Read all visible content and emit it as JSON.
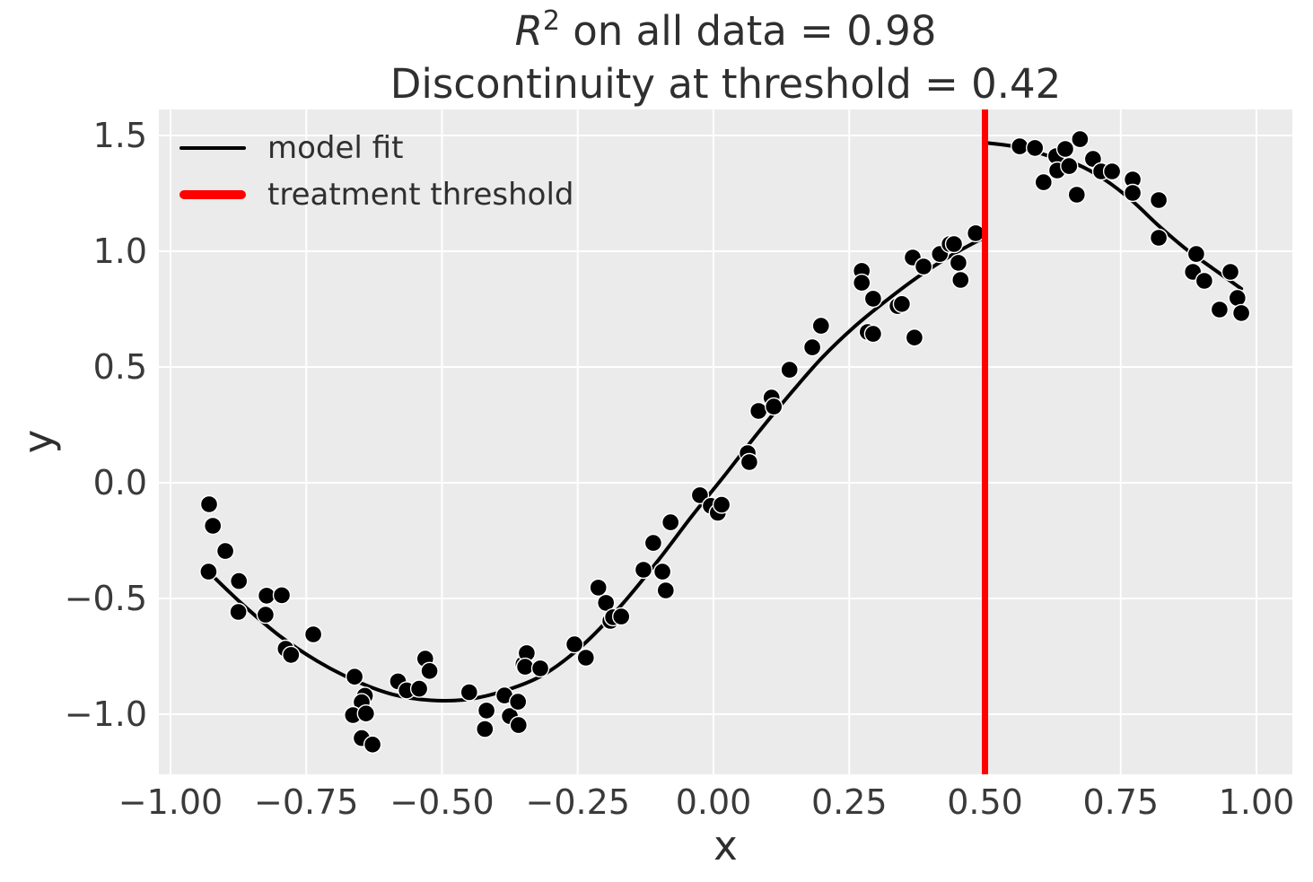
{
  "title": {
    "r_italic": "R",
    "r_exponent": "2",
    "line1_rest": " on all data = 0.98",
    "line2": "Discontinuity at threshold = 0.42",
    "r_squared_value": 0.98,
    "discontinuity_value": 0.42
  },
  "axes": {
    "xlabel": "x",
    "ylabel": "y"
  },
  "legend": {
    "position": "upper left",
    "items": [
      {
        "label": "model fit",
        "color": "#000000",
        "style": "line"
      },
      {
        "label": "treatment threshold",
        "color": "#ff0000",
        "style": "thick-line"
      }
    ]
  },
  "chart_data": {
    "type": "scatter",
    "title": "R^2 on all data = 0.98\nDiscontinuity at threshold = 0.42",
    "xlabel": "x",
    "ylabel": "y",
    "xlim": [
      -1.0215,
      1.0661
    ],
    "ylim": [
      -1.2597,
      1.6124
    ],
    "grid": true,
    "background_color": "#ebebeb",
    "grid_color": "#ffffff",
    "text_color": "#3a3a3a",
    "xticks": {
      "values": [
        -1.0,
        -0.75,
        -0.5,
        -0.25,
        0.0,
        0.25,
        0.5,
        0.75,
        1.0
      ],
      "labels": [
        "−1.00",
        "−0.75",
        "−0.50",
        "−0.25",
        "0.00",
        "0.25",
        "0.50",
        "0.75",
        "1.00"
      ]
    },
    "yticks": {
      "values": [
        1.5,
        1.0,
        0.5,
        0.0,
        -0.5,
        -1.0
      ],
      "labels": [
        "1.5",
        "1.0",
        "0.5",
        "0.0",
        "−0.5",
        "−1.0"
      ]
    },
    "threshold_line": {
      "x": 0.5,
      "color": "#ff0000",
      "width": 7
    },
    "fit_line": {
      "color": "#000000",
      "width": 4,
      "left_branch": [
        [
          -0.934,
          -0.376
        ],
        [
          -0.87,
          -0.52
        ],
        [
          -0.8,
          -0.66
        ],
        [
          -0.73,
          -0.77
        ],
        [
          -0.66,
          -0.855
        ],
        [
          -0.59,
          -0.915
        ],
        [
          -0.52,
          -0.94
        ],
        [
          -0.45,
          -0.935
        ],
        [
          -0.38,
          -0.895
        ],
        [
          -0.31,
          -0.825
        ],
        [
          -0.24,
          -0.7
        ],
        [
          -0.17,
          -0.53
        ],
        [
          -0.1,
          -0.33
        ],
        [
          -0.04,
          -0.145
        ],
        [
          0.02,
          0.03
        ],
        [
          0.08,
          0.21
        ],
        [
          0.14,
          0.38
        ],
        [
          0.2,
          0.54
        ],
        [
          0.26,
          0.675
        ],
        [
          0.32,
          0.79
        ],
        [
          0.38,
          0.895
        ],
        [
          0.44,
          0.985
        ],
        [
          0.499,
          1.06
        ]
      ],
      "right_branch": [
        [
          0.503,
          1.468
        ],
        [
          0.56,
          1.45
        ],
        [
          0.62,
          1.41
        ],
        [
          0.67,
          1.375
        ],
        [
          0.72,
          1.31
        ],
        [
          0.77,
          1.22
        ],
        [
          0.82,
          1.11
        ],
        [
          0.87,
          1.01
        ],
        [
          0.92,
          0.925
        ],
        [
          0.972,
          0.838
        ]
      ]
    },
    "scatter": {
      "color": "#000000",
      "edge_color": "#ffffff",
      "radius": 9.5,
      "points": [
        [
          -0.929,
          -0.093
        ],
        [
          -0.922,
          -0.186
        ],
        [
          -0.899,
          -0.295
        ],
        [
          -0.93,
          -0.384
        ],
        [
          -0.874,
          -0.425
        ],
        [
          -0.875,
          -0.558
        ],
        [
          -0.823,
          -0.488
        ],
        [
          -0.795,
          -0.486
        ],
        [
          -0.825,
          -0.57
        ],
        [
          -0.737,
          -0.655
        ],
        [
          -0.788,
          -0.717
        ],
        [
          -0.778,
          -0.744
        ],
        [
          -0.661,
          -0.838
        ],
        [
          -0.642,
          -0.92
        ],
        [
          -0.648,
          -0.948
        ],
        [
          -0.664,
          -1.004
        ],
        [
          -0.64,
          -0.997
        ],
        [
          -0.581,
          -0.858
        ],
        [
          -0.565,
          -0.897
        ],
        [
          -0.542,
          -0.89
        ],
        [
          -0.531,
          -0.76
        ],
        [
          -0.523,
          -0.813
        ],
        [
          -0.648,
          -1.103
        ],
        [
          -0.628,
          -1.131
        ],
        [
          -0.45,
          -0.905
        ],
        [
          -0.418,
          -0.984
        ],
        [
          -0.421,
          -1.064
        ],
        [
          -0.385,
          -0.919
        ],
        [
          -0.375,
          -1.008
        ],
        [
          -0.36,
          -0.946
        ],
        [
          -0.359,
          -1.047
        ],
        [
          -0.35,
          -0.783
        ],
        [
          -0.344,
          -0.736
        ],
        [
          -0.347,
          -0.795
        ],
        [
          -0.319,
          -0.802
        ],
        [
          -0.256,
          -0.698
        ],
        [
          -0.235,
          -0.756
        ],
        [
          -0.212,
          -0.453
        ],
        [
          -0.198,
          -0.519
        ],
        [
          -0.19,
          -0.597
        ],
        [
          -0.185,
          -0.581
        ],
        [
          -0.17,
          -0.578
        ],
        [
          -0.129,
          -0.376
        ],
        [
          -0.111,
          -0.26
        ],
        [
          -0.094,
          -0.384
        ],
        [
          -0.088,
          -0.465
        ],
        [
          -0.079,
          -0.171
        ],
        [
          -0.025,
          -0.054
        ],
        [
          -0.005,
          -0.1
        ],
        [
          0.008,
          -0.13
        ],
        [
          0.015,
          -0.095
        ],
        [
          0.063,
          0.128
        ],
        [
          0.066,
          0.089
        ],
        [
          0.083,
          0.31
        ],
        [
          0.107,
          0.368
        ],
        [
          0.111,
          0.329
        ],
        [
          0.14,
          0.488
        ],
        [
          0.182,
          0.585
        ],
        [
          0.198,
          0.678
        ],
        [
          0.273,
          0.915
        ],
        [
          0.273,
          0.864
        ],
        [
          0.294,
          0.795
        ],
        [
          0.284,
          0.651
        ],
        [
          0.294,
          0.643
        ],
        [
          0.339,
          0.763
        ],
        [
          0.347,
          0.772
        ],
        [
          0.367,
          0.973
        ],
        [
          0.37,
          0.627
        ],
        [
          0.387,
          0.934
        ],
        [
          0.417,
          0.988
        ],
        [
          0.435,
          1.031
        ],
        [
          0.443,
          1.031
        ],
        [
          0.451,
          0.95
        ],
        [
          0.455,
          0.876
        ],
        [
          0.483,
          1.078
        ],
        [
          0.564,
          1.453
        ],
        [
          0.592,
          1.446
        ],
        [
          0.608,
          1.298
        ],
        [
          0.631,
          1.411
        ],
        [
          0.633,
          1.349
        ],
        [
          0.648,
          1.442
        ],
        [
          0.655,
          1.368
        ],
        [
          0.669,
          1.244
        ],
        [
          0.675,
          1.484
        ],
        [
          0.699,
          1.399
        ],
        [
          0.714,
          1.345
        ],
        [
          0.734,
          1.345
        ],
        [
          0.772,
          1.31
        ],
        [
          0.772,
          1.252
        ],
        [
          0.82,
          1.221
        ],
        [
          0.82,
          1.058
        ],
        [
          0.883,
          0.911
        ],
        [
          0.889,
          0.988
        ],
        [
          0.904,
          0.872
        ],
        [
          0.932,
          0.748
        ],
        [
          0.952,
          0.911
        ],
        [
          0.965,
          0.798
        ],
        [
          0.972,
          0.733
        ]
      ]
    }
  }
}
